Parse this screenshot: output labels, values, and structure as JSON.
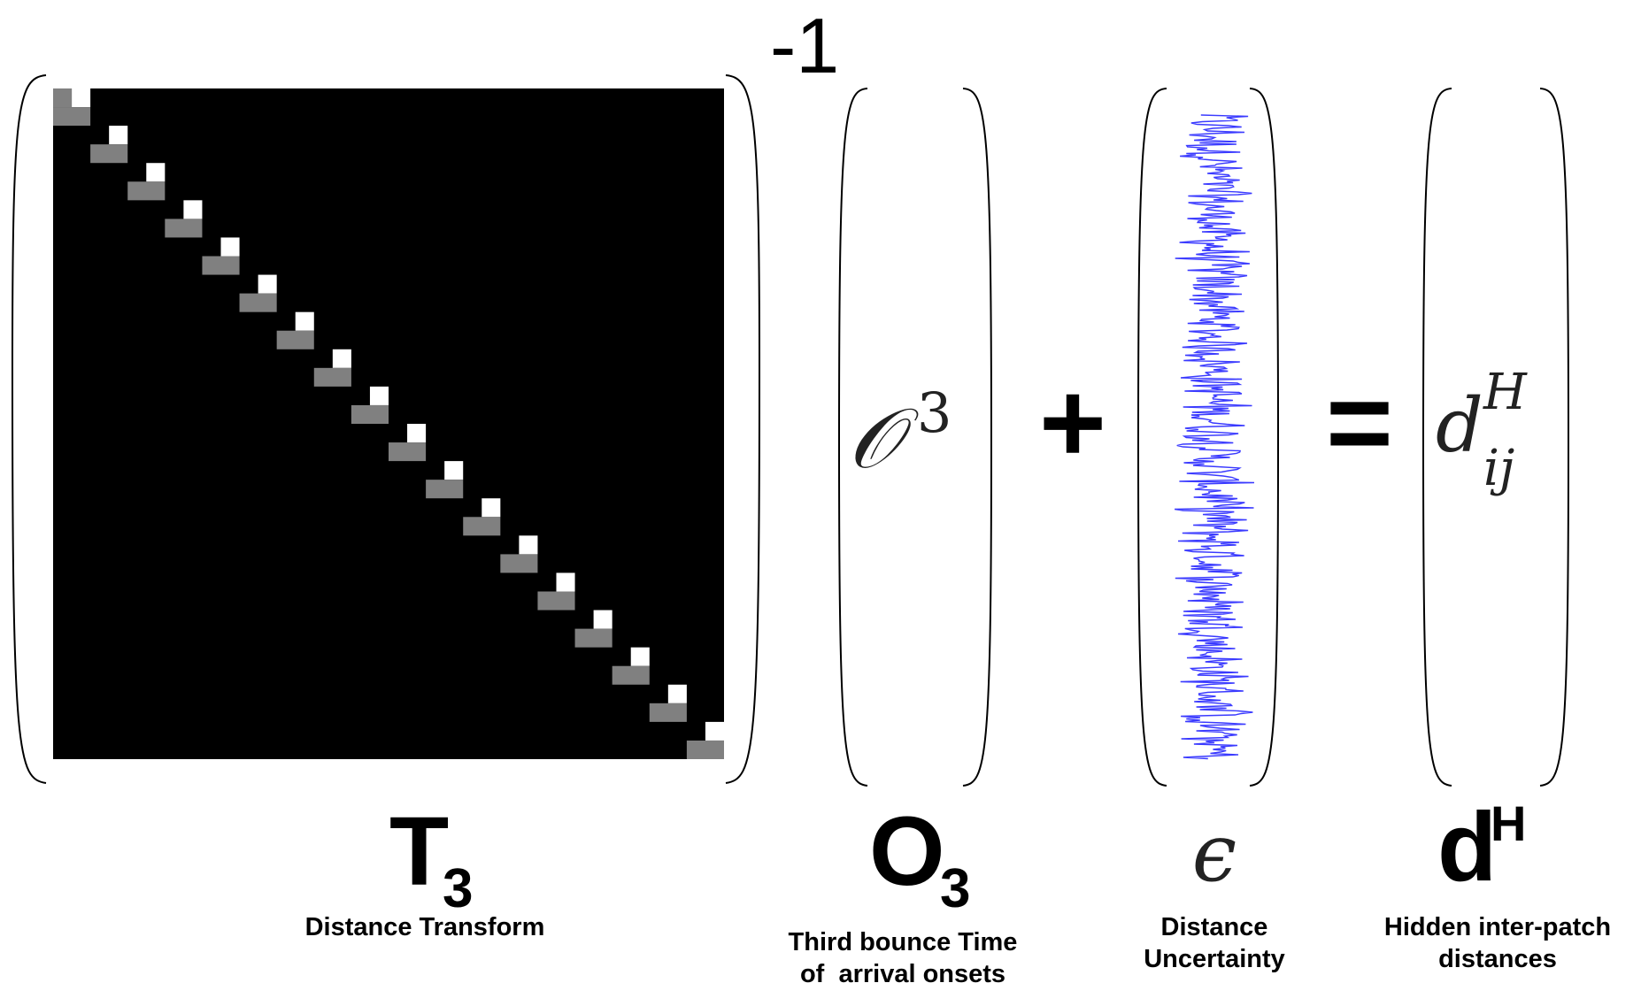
{
  "inverse_exponent": "-1",
  "matrix": {
    "diag_steps": 18
  },
  "operators": {
    "plus": "+",
    "equals": "="
  },
  "inner": {
    "o_symbol": "𝒪",
    "o_power": "3",
    "d_base": "d",
    "d_super": "H",
    "d_sub": "ij"
  },
  "labels": {
    "t": {
      "main": "T",
      "sub": "3",
      "caption": "Distance Transform"
    },
    "o": {
      "main": "O",
      "sub": "3",
      "caption_line1": "Third bounce Time",
      "caption_line2": "of  arrival onsets"
    },
    "eps": {
      "main": "ϵ",
      "caption_line1": "Distance",
      "caption_line2": "Uncertainty"
    },
    "dh": {
      "main": "d",
      "sup": "H",
      "caption_line1": "Hidden inter-patch",
      "caption_line2": "distances"
    }
  },
  "colors": {
    "matrix_bg": "#000000",
    "diag_white": "#ffffff",
    "diag_gray": "#808080",
    "noise": "#3a3aff"
  }
}
